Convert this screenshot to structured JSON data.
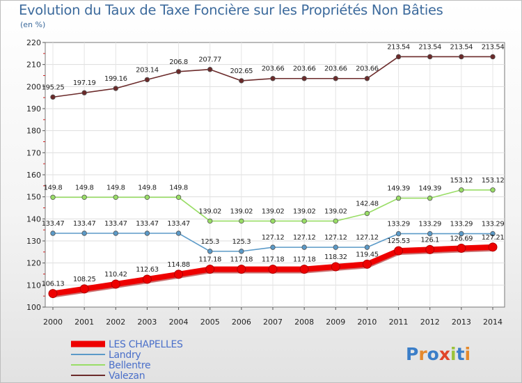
{
  "header": {
    "title": "Evolution du Taux de Taxe Foncière sur les Propriétés Non Bâties",
    "subtitle": "(en %)"
  },
  "chart_data": {
    "type": "line",
    "title": "Evolution du Taux de Taxe Foncière sur les Propriétés Non Bâties",
    "ylabel": "(en %)",
    "xlabel": "",
    "x": [
      "2000",
      "2001",
      "2002",
      "2003",
      "2004",
      "2005",
      "2006",
      "2007",
      "2008",
      "2009",
      "2010",
      "2011",
      "2012",
      "2013",
      "2014"
    ],
    "ylim": [
      100,
      220
    ],
    "yticks": [
      "100",
      "110",
      "120",
      "130",
      "140",
      "150",
      "160",
      "170",
      "180",
      "190",
      "200",
      "210",
      "220"
    ],
    "grid": true,
    "legend_position": "bottom-left",
    "series": [
      {
        "name": "LES CHAPELLES",
        "color": "#ee0000",
        "values": [
          106.13,
          108.25,
          110.42,
          112.63,
          114.88,
          117.18,
          117.18,
          117.18,
          117.18,
          118.32,
          119.45,
          125.53,
          126.1,
          126.69,
          127.21
        ],
        "labels": [
          "106.13",
          "108.25",
          "110.42",
          "112.63",
          "114.88",
          "117.18",
          "117.18",
          "117.18",
          "117.18",
          "118.32",
          "119.45",
          "125.53",
          "126.1",
          "126.69",
          "127.21"
        ]
      },
      {
        "name": "Landry",
        "color": "#5b9ac8",
        "values": [
          133.47,
          133.47,
          133.47,
          133.47,
          133.47,
          125.3,
          125.3,
          127.12,
          127.12,
          127.12,
          127.12,
          133.29,
          133.29,
          133.29,
          133.29
        ],
        "labels": [
          "133.47",
          "133.47",
          "133.47",
          "133.47",
          "133.47",
          "125.3",
          "125.3",
          "127.12",
          "127.12",
          "127.12",
          "127.12",
          "133.29",
          "133.29",
          "133.29",
          "133.29"
        ]
      },
      {
        "name": "Bellentre",
        "color": "#99dd66",
        "values": [
          149.8,
          149.8,
          149.8,
          149.8,
          149.8,
          139.02,
          139.02,
          139.02,
          139.02,
          139.02,
          142.48,
          149.39,
          149.39,
          153.12,
          153.12
        ],
        "labels": [
          "149.8",
          "149.8",
          "149.8",
          "149.8",
          "149.8",
          "139.02",
          "139.02",
          "139.02",
          "139.02",
          "139.02",
          "142.48",
          "149.39",
          "149.39",
          "153.12",
          "153.12"
        ]
      },
      {
        "name": "Valezan",
        "color": "#6b2a2a",
        "values": [
          195.25,
          197.19,
          199.16,
          203.14,
          206.8,
          207.77,
          202.65,
          203.66,
          203.66,
          203.66,
          203.66,
          213.54,
          213.54,
          213.54,
          213.54
        ],
        "labels": [
          "195.25",
          "197.19",
          "199.16",
          "203.14",
          "206.8",
          "207.77",
          "202.65",
          "203.66",
          "203.66",
          "203.66",
          "203.66",
          "213.54",
          "213.54",
          "213.54",
          "213.54"
        ]
      }
    ]
  },
  "logo": {
    "text": "Proxiti",
    "letters": [
      "P",
      "r",
      "o",
      "x",
      "i",
      "t",
      "i"
    ],
    "letter_colors": [
      "#3b7ec8",
      "#e5892c",
      "#3b7ec8",
      "#e0452a",
      "#9bc33a",
      "#3b7ec8",
      "#e5892c"
    ]
  }
}
